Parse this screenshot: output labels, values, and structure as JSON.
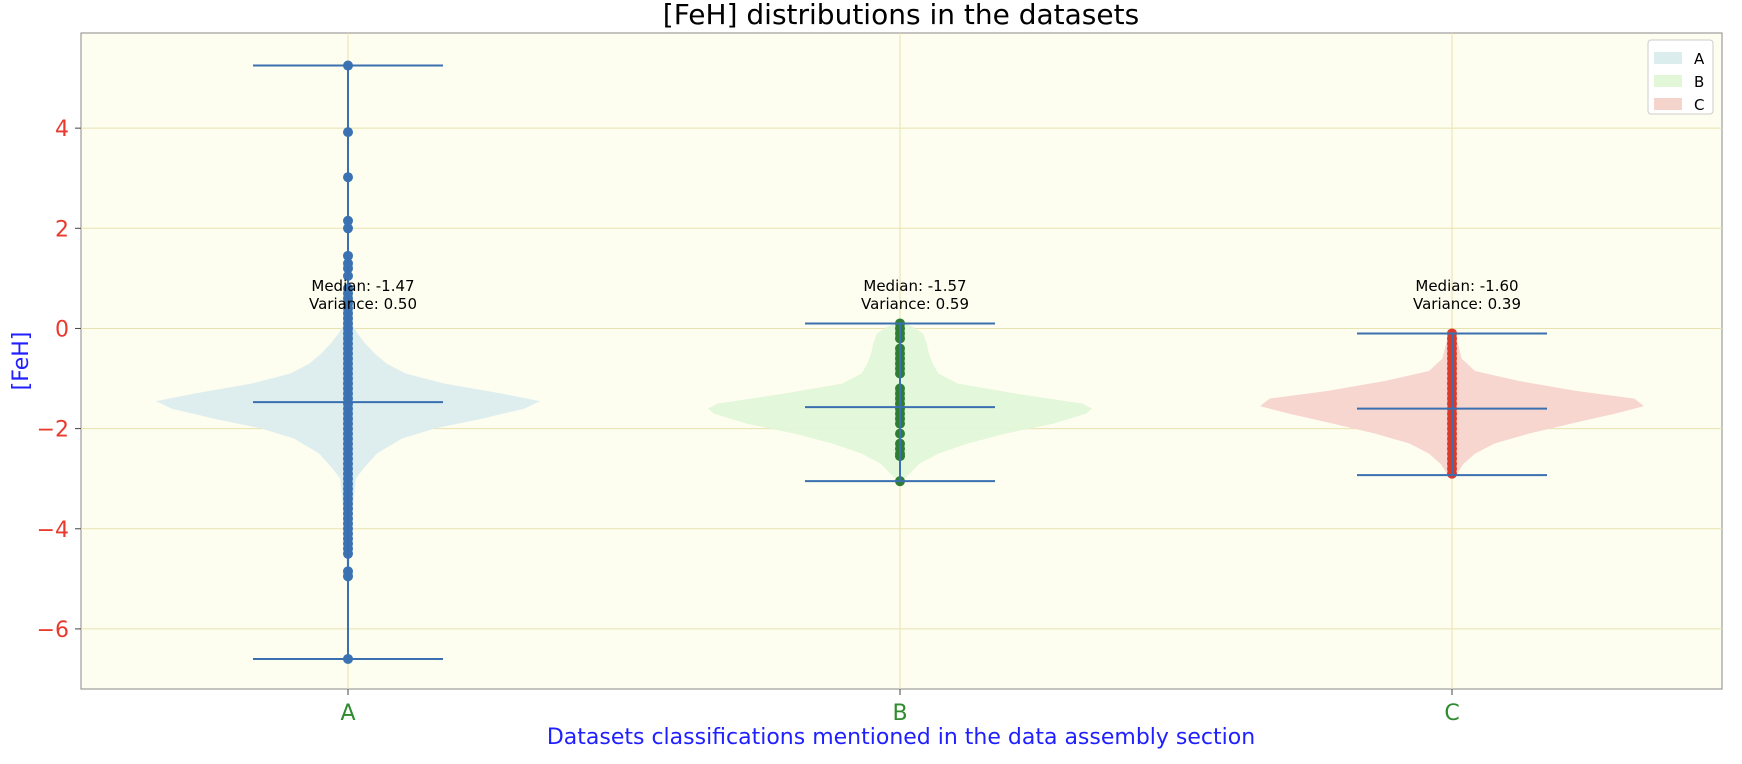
{
  "chart_data": {
    "type": "violin",
    "title": "[FeH] distributions in the datasets",
    "xlabel": "Datasets classifications mentioned in the data assembly section",
    "ylabel": "[FeH]",
    "categories": [
      "A",
      "B",
      "C"
    ],
    "ylim": [
      -7.2,
      5.9
    ],
    "yticks": [
      -6,
      -4,
      -2,
      0,
      2,
      4
    ],
    "ytick_labels": [
      "−6",
      "−4",
      "−2",
      "0",
      "2",
      "4"
    ],
    "grid": true,
    "legend_position": "top-right",
    "colors": {
      "background": "#fefef0",
      "grid": "#e8e2b0",
      "whisker": "#3a6fb0",
      "ytick": "#e8392c",
      "xtick": "#2e8b2e",
      "axis_label": "#1f1fff"
    },
    "series": [
      {
        "name": "A",
        "fill": "#dcedee",
        "point_color": "#3a72b4",
        "min": -6.6,
        "max": 5.25,
        "median": -1.47,
        "annotation": [
          "Median: -1.47",
          "Variance: 0.50"
        ],
        "profile": [
          [
            -6.6,
            0.002
          ],
          [
            -5.0,
            0.006
          ],
          [
            -4.0,
            0.015
          ],
          [
            -3.0,
            0.04
          ],
          [
            -2.8,
            0.08
          ],
          [
            -2.5,
            0.15
          ],
          [
            -2.2,
            0.28
          ],
          [
            -2.0,
            0.45
          ],
          [
            -1.8,
            0.7
          ],
          [
            -1.6,
            0.92
          ],
          [
            -1.45,
            1.0
          ],
          [
            -1.3,
            0.8
          ],
          [
            -1.1,
            0.5
          ],
          [
            -0.9,
            0.3
          ],
          [
            -0.7,
            0.2
          ],
          [
            -0.5,
            0.14
          ],
          [
            -0.3,
            0.09
          ],
          [
            -0.1,
            0.05
          ],
          [
            0.1,
            0.02
          ],
          [
            0.5,
            0.01
          ],
          [
            1.0,
            0.006
          ],
          [
            2.0,
            0.004
          ],
          [
            3.0,
            0.003
          ],
          [
            4.0,
            0.002
          ],
          [
            5.25,
            0.001
          ]
        ],
        "points": [
          5.25,
          3.92,
          3.02,
          2.15,
          2.0,
          1.45,
          1.3,
          1.2,
          1.05,
          0.8,
          0.7,
          0.6,
          0.5,
          0.4,
          0.3,
          0.2,
          0.1,
          0.0,
          -0.1,
          -0.2,
          -0.3,
          -0.4,
          -0.5,
          -0.6,
          -0.7,
          -0.8,
          -0.9,
          -1.0,
          -1.1,
          -1.2,
          -1.3,
          -1.4,
          -1.5,
          -1.6,
          -1.7,
          -1.8,
          -1.9,
          -2.0,
          -2.1,
          -2.2,
          -2.3,
          -2.4,
          -2.5,
          -2.6,
          -2.7,
          -2.8,
          -2.9,
          -3.0,
          -3.1,
          -3.2,
          -3.3,
          -3.4,
          -3.5,
          -3.6,
          -3.7,
          -3.8,
          -3.9,
          -4.0,
          -4.1,
          -4.2,
          -4.3,
          -4.4,
          -4.5,
          -4.85,
          -4.95,
          -6.6
        ]
      },
      {
        "name": "B",
        "fill": "#e2f7d8",
        "point_color": "#2e7d32",
        "min": -3.05,
        "max": 0.1,
        "median": -1.57,
        "annotation": [
          "Median: -1.57",
          "Variance: 0.59"
        ],
        "profile": [
          [
            -3.05,
            0.01
          ],
          [
            -2.9,
            0.05
          ],
          [
            -2.7,
            0.1
          ],
          [
            -2.5,
            0.2
          ],
          [
            -2.3,
            0.35
          ],
          [
            -2.1,
            0.55
          ],
          [
            -1.9,
            0.8
          ],
          [
            -1.7,
            0.97
          ],
          [
            -1.6,
            1.0
          ],
          [
            -1.5,
            0.95
          ],
          [
            -1.3,
            0.6
          ],
          [
            -1.1,
            0.3
          ],
          [
            -0.9,
            0.2
          ],
          [
            -0.7,
            0.17
          ],
          [
            -0.5,
            0.15
          ],
          [
            -0.3,
            0.14
          ],
          [
            -0.1,
            0.12
          ],
          [
            0.05,
            0.06
          ],
          [
            0.1,
            0.01
          ]
        ],
        "points": [
          0.1,
          0.0,
          -0.1,
          -0.2,
          -0.4,
          -0.5,
          -0.6,
          -0.7,
          -0.8,
          -0.9,
          -1.2,
          -1.3,
          -1.4,
          -1.5,
          -1.6,
          -1.7,
          -1.8,
          -1.9,
          -2.1,
          -2.3,
          -2.4,
          -2.5,
          -2.55,
          -3.05
        ]
      },
      {
        "name": "C",
        "fill": "#f5d4cc",
        "point_color": "#d93a2b",
        "min": -2.93,
        "max": -0.1,
        "median": -1.6,
        "annotation": [
          "Median: -1.60",
          "Variance: 0.39"
        ],
        "profile": [
          [
            -2.93,
            0.02
          ],
          [
            -2.7,
            0.06
          ],
          [
            -2.5,
            0.12
          ],
          [
            -2.3,
            0.22
          ],
          [
            -2.1,
            0.4
          ],
          [
            -1.9,
            0.62
          ],
          [
            -1.7,
            0.85
          ],
          [
            -1.55,
            1.0
          ],
          [
            -1.4,
            0.95
          ],
          [
            -1.25,
            0.65
          ],
          [
            -1.05,
            0.35
          ],
          [
            -0.85,
            0.12
          ],
          [
            -0.6,
            0.05
          ],
          [
            -0.3,
            0.03
          ],
          [
            -0.1,
            0.02
          ]
        ],
        "points": [
          -0.1,
          -0.2,
          -0.3,
          -0.4,
          -0.5,
          -0.6,
          -0.7,
          -0.8,
          -0.9,
          -1.0,
          -1.1,
          -1.2,
          -1.3,
          -1.4,
          -1.5,
          -1.6,
          -1.7,
          -1.8,
          -1.9,
          -2.0,
          -2.1,
          -2.2,
          -2.3,
          -2.4,
          -2.5,
          -2.6,
          -2.7,
          -2.8,
          -2.9
        ]
      }
    ],
    "legend": [
      "A",
      "B",
      "C"
    ]
  }
}
